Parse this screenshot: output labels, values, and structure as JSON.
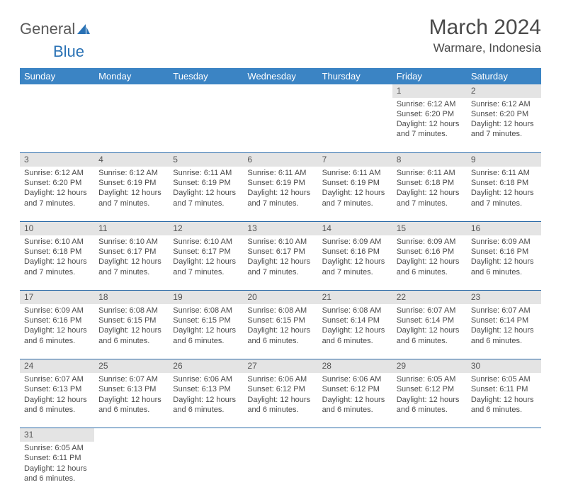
{
  "logo": {
    "general": "General",
    "blue": "Blue"
  },
  "title": "March 2024",
  "location": "Warmare, Indonesia",
  "colors": {
    "header_bg": "#3b84c4",
    "header_text": "#ffffff",
    "daynum_bg": "#e4e4e4",
    "row_border": "#2a6aa8",
    "text": "#4a4a4a",
    "logo_blue": "#2a72b5"
  },
  "weekdays": [
    "Sunday",
    "Monday",
    "Tuesday",
    "Wednesday",
    "Thursday",
    "Friday",
    "Saturday"
  ],
  "weeks": [
    {
      "days": [
        null,
        null,
        null,
        null,
        null,
        {
          "n": "1",
          "sunrise": "Sunrise: 6:12 AM",
          "sunset": "Sunset: 6:20 PM",
          "daylight": "Daylight: 12 hours and 7 minutes."
        },
        {
          "n": "2",
          "sunrise": "Sunrise: 6:12 AM",
          "sunset": "Sunset: 6:20 PM",
          "daylight": "Daylight: 12 hours and 7 minutes."
        }
      ]
    },
    {
      "days": [
        {
          "n": "3",
          "sunrise": "Sunrise: 6:12 AM",
          "sunset": "Sunset: 6:20 PM",
          "daylight": "Daylight: 12 hours and 7 minutes."
        },
        {
          "n": "4",
          "sunrise": "Sunrise: 6:12 AM",
          "sunset": "Sunset: 6:19 PM",
          "daylight": "Daylight: 12 hours and 7 minutes."
        },
        {
          "n": "5",
          "sunrise": "Sunrise: 6:11 AM",
          "sunset": "Sunset: 6:19 PM",
          "daylight": "Daylight: 12 hours and 7 minutes."
        },
        {
          "n": "6",
          "sunrise": "Sunrise: 6:11 AM",
          "sunset": "Sunset: 6:19 PM",
          "daylight": "Daylight: 12 hours and 7 minutes."
        },
        {
          "n": "7",
          "sunrise": "Sunrise: 6:11 AM",
          "sunset": "Sunset: 6:19 PM",
          "daylight": "Daylight: 12 hours and 7 minutes."
        },
        {
          "n": "8",
          "sunrise": "Sunrise: 6:11 AM",
          "sunset": "Sunset: 6:18 PM",
          "daylight": "Daylight: 12 hours and 7 minutes."
        },
        {
          "n": "9",
          "sunrise": "Sunrise: 6:11 AM",
          "sunset": "Sunset: 6:18 PM",
          "daylight": "Daylight: 12 hours and 7 minutes."
        }
      ]
    },
    {
      "days": [
        {
          "n": "10",
          "sunrise": "Sunrise: 6:10 AM",
          "sunset": "Sunset: 6:18 PM",
          "daylight": "Daylight: 12 hours and 7 minutes."
        },
        {
          "n": "11",
          "sunrise": "Sunrise: 6:10 AM",
          "sunset": "Sunset: 6:17 PM",
          "daylight": "Daylight: 12 hours and 7 minutes."
        },
        {
          "n": "12",
          "sunrise": "Sunrise: 6:10 AM",
          "sunset": "Sunset: 6:17 PM",
          "daylight": "Daylight: 12 hours and 7 minutes."
        },
        {
          "n": "13",
          "sunrise": "Sunrise: 6:10 AM",
          "sunset": "Sunset: 6:17 PM",
          "daylight": "Daylight: 12 hours and 7 minutes."
        },
        {
          "n": "14",
          "sunrise": "Sunrise: 6:09 AM",
          "sunset": "Sunset: 6:16 PM",
          "daylight": "Daylight: 12 hours and 7 minutes."
        },
        {
          "n": "15",
          "sunrise": "Sunrise: 6:09 AM",
          "sunset": "Sunset: 6:16 PM",
          "daylight": "Daylight: 12 hours and 6 minutes."
        },
        {
          "n": "16",
          "sunrise": "Sunrise: 6:09 AM",
          "sunset": "Sunset: 6:16 PM",
          "daylight": "Daylight: 12 hours and 6 minutes."
        }
      ]
    },
    {
      "days": [
        {
          "n": "17",
          "sunrise": "Sunrise: 6:09 AM",
          "sunset": "Sunset: 6:16 PM",
          "daylight": "Daylight: 12 hours and 6 minutes."
        },
        {
          "n": "18",
          "sunrise": "Sunrise: 6:08 AM",
          "sunset": "Sunset: 6:15 PM",
          "daylight": "Daylight: 12 hours and 6 minutes."
        },
        {
          "n": "19",
          "sunrise": "Sunrise: 6:08 AM",
          "sunset": "Sunset: 6:15 PM",
          "daylight": "Daylight: 12 hours and 6 minutes."
        },
        {
          "n": "20",
          "sunrise": "Sunrise: 6:08 AM",
          "sunset": "Sunset: 6:15 PM",
          "daylight": "Daylight: 12 hours and 6 minutes."
        },
        {
          "n": "21",
          "sunrise": "Sunrise: 6:08 AM",
          "sunset": "Sunset: 6:14 PM",
          "daylight": "Daylight: 12 hours and 6 minutes."
        },
        {
          "n": "22",
          "sunrise": "Sunrise: 6:07 AM",
          "sunset": "Sunset: 6:14 PM",
          "daylight": "Daylight: 12 hours and 6 minutes."
        },
        {
          "n": "23",
          "sunrise": "Sunrise: 6:07 AM",
          "sunset": "Sunset: 6:14 PM",
          "daylight": "Daylight: 12 hours and 6 minutes."
        }
      ]
    },
    {
      "days": [
        {
          "n": "24",
          "sunrise": "Sunrise: 6:07 AM",
          "sunset": "Sunset: 6:13 PM",
          "daylight": "Daylight: 12 hours and 6 minutes."
        },
        {
          "n": "25",
          "sunrise": "Sunrise: 6:07 AM",
          "sunset": "Sunset: 6:13 PM",
          "daylight": "Daylight: 12 hours and 6 minutes."
        },
        {
          "n": "26",
          "sunrise": "Sunrise: 6:06 AM",
          "sunset": "Sunset: 6:13 PM",
          "daylight": "Daylight: 12 hours and 6 minutes."
        },
        {
          "n": "27",
          "sunrise": "Sunrise: 6:06 AM",
          "sunset": "Sunset: 6:12 PM",
          "daylight": "Daylight: 12 hours and 6 minutes."
        },
        {
          "n": "28",
          "sunrise": "Sunrise: 6:06 AM",
          "sunset": "Sunset: 6:12 PM",
          "daylight": "Daylight: 12 hours and 6 minutes."
        },
        {
          "n": "29",
          "sunrise": "Sunrise: 6:05 AM",
          "sunset": "Sunset: 6:12 PM",
          "daylight": "Daylight: 12 hours and 6 minutes."
        },
        {
          "n": "30",
          "sunrise": "Sunrise: 6:05 AM",
          "sunset": "Sunset: 6:11 PM",
          "daylight": "Daylight: 12 hours and 6 minutes."
        }
      ]
    },
    {
      "days": [
        {
          "n": "31",
          "sunrise": "Sunrise: 6:05 AM",
          "sunset": "Sunset: 6:11 PM",
          "daylight": "Daylight: 12 hours and 6 minutes."
        },
        null,
        null,
        null,
        null,
        null,
        null
      ]
    }
  ]
}
